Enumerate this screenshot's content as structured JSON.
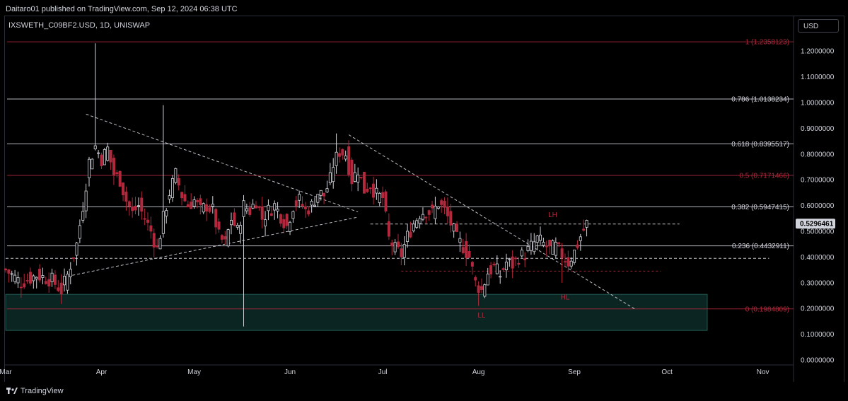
{
  "header": {
    "published": "Daitaro01 published on TradingView.com, Sep 12, 2024 06:38 UTC"
  },
  "symbol_line": "IXSWETH_C09BF2.USD, 1D, UNISWAP",
  "currency_button": "USD",
  "footer": {
    "brand": "TradingView"
  },
  "colors": {
    "background": "#000000",
    "bull": "#d1d4dc",
    "bear": "#b2283c",
    "fib_red": "#b2283c",
    "fib_white": "#d1d4dc",
    "zone": "#0c2a26",
    "price_tag_bg": "#d1d4dc",
    "price_tag_fg": "#000000"
  },
  "icons": {
    "logo": "tradingview-logo-icon"
  },
  "chart_data": {
    "type": "candlestick",
    "title": "IXSWETH_C09BF2.USD, 1D, UNISWAP",
    "ylim": [
      0.0,
      1.27
    ],
    "y_ticks": [
      "1.2000000",
      "1.1000000",
      "1.0000000",
      "0.9000000",
      "0.8000000",
      "0.7000000",
      "0.6000000",
      "0.5000000",
      "0.4000000",
      "0.3000000",
      "0.2000000",
      "0.1000000",
      "0.0000000"
    ],
    "y_tick_values": [
      1.2,
      1.1,
      1.0,
      0.9,
      0.8,
      0.7,
      0.6,
      0.5,
      0.4,
      0.3,
      0.2,
      0.1,
      0.0
    ],
    "x_ticks": [
      "Mar",
      "Apr",
      "May",
      "Jun",
      "Jul",
      "Aug",
      "Sep",
      "Oct",
      "Nov"
    ],
    "x_tick_days": [
      0,
      31,
      61,
      92,
      122,
      153,
      184,
      214,
      245
    ],
    "last_price": "0.5296461",
    "last_value": 0.5296461,
    "fib_levels": [
      {
        "label": "1 (1.2358123)",
        "value": 1.2358123,
        "color": "red"
      },
      {
        "label": "0.786 (1.0138234)",
        "value": 1.0138234,
        "color": "white"
      },
      {
        "label": "0.618 (0.8395517)",
        "value": 0.8395517,
        "color": "white"
      },
      {
        "label": "0.5 (0.7171466)",
        "value": 0.7171466,
        "color": "red"
      },
      {
        "label": "0.382 (0.5947415)",
        "value": 0.5947415,
        "color": "white"
      },
      {
        "label": "0.236 (0.4432911)",
        "value": 0.4432911,
        "color": "white"
      },
      {
        "label": "0 (0.1984809)",
        "value": 0.1984809,
        "color": "red"
      }
    ],
    "annotations": [
      {
        "text": "LH",
        "day": 177,
        "value": 0.555
      },
      {
        "text": "HL",
        "day": 181,
        "value": 0.235
      },
      {
        "text": "LL",
        "day": 154,
        "value": 0.165
      }
    ],
    "support_zone": {
      "y_top": 0.255,
      "y_bottom": 0.115,
      "day_start": 0,
      "day_end": 227
    },
    "trendlines": [
      {
        "style": "dashed",
        "from": [
          26,
          0.955
        ],
        "to": [
          114,
          0.575
        ]
      },
      {
        "style": "dashed",
        "from": [
          20,
          0.325
        ],
        "to": [
          114,
          0.555
        ]
      },
      {
        "style": "dashed",
        "from": [
          111,
          0.875
        ],
        "to": [
          204,
          0.195
        ]
      },
      {
        "style": "dashed",
        "from": [
          0,
          0.395
        ],
        "to": [
          247,
          0.395
        ]
      },
      {
        "style": "dashed",
        "from": [
          118,
          0.528
        ],
        "to": [
          218,
          0.528
        ]
      },
      {
        "style": "dashed_red",
        "from": [
          128,
          0.345
        ],
        "to": [
          212,
          0.345
        ]
      }
    ],
    "anchor_points": [
      [
        0,
        0.35
      ],
      [
        5,
        0.3
      ],
      [
        10,
        0.33
      ],
      [
        15,
        0.31
      ],
      [
        18,
        0.27
      ],
      [
        20,
        0.33
      ],
      [
        23,
        0.45
      ],
      [
        25,
        0.6
      ],
      [
        27,
        0.77
      ],
      [
        29,
        0.83
      ],
      [
        31,
        0.78
      ],
      [
        33,
        0.82
      ],
      [
        35,
        0.72
      ],
      [
        37,
        0.7
      ],
      [
        39,
        0.62
      ],
      [
        41,
        0.57
      ],
      [
        43,
        0.6
      ],
      [
        45,
        0.55
      ],
      [
        47,
        0.5
      ],
      [
        49,
        0.43
      ],
      [
        51,
        0.55
      ],
      [
        53,
        0.65
      ],
      [
        55,
        0.72
      ],
      [
        57,
        0.64
      ],
      [
        59,
        0.6
      ],
      [
        61,
        0.62
      ],
      [
        63,
        0.58
      ],
      [
        65,
        0.6
      ],
      [
        67,
        0.58
      ],
      [
        69,
        0.48
      ],
      [
        71,
        0.45
      ],
      [
        73,
        0.55
      ],
      [
        75,
        0.5
      ],
      [
        77,
        0.6
      ],
      [
        79,
        0.58
      ],
      [
        81,
        0.62
      ],
      [
        83,
        0.55
      ],
      [
        85,
        0.58
      ],
      [
        87,
        0.6
      ],
      [
        89,
        0.56
      ],
      [
        91,
        0.52
      ],
      [
        93,
        0.6
      ],
      [
        95,
        0.62
      ],
      [
        97,
        0.58
      ],
      [
        99,
        0.6
      ],
      [
        101,
        0.65
      ],
      [
        103,
        0.64
      ],
      [
        105,
        0.7
      ],
      [
        106,
        0.76
      ],
      [
        108,
        0.81
      ],
      [
        110,
        0.8
      ],
      [
        112,
        0.7
      ],
      [
        114,
        0.74
      ],
      [
        116,
        0.66
      ],
      [
        118,
        0.68
      ],
      [
        120,
        0.64
      ],
      [
        122,
        0.63
      ],
      [
        124,
        0.47
      ],
      [
        126,
        0.43
      ],
      [
        128,
        0.41
      ],
      [
        130,
        0.48
      ],
      [
        132,
        0.53
      ],
      [
        134,
        0.57
      ],
      [
        136,
        0.58
      ],
      [
        138,
        0.57
      ],
      [
        140,
        0.61
      ],
      [
        142,
        0.58
      ],
      [
        144,
        0.53
      ],
      [
        146,
        0.47
      ],
      [
        148,
        0.44
      ],
      [
        150,
        0.4
      ],
      [
        152,
        0.3
      ],
      [
        154,
        0.27
      ],
      [
        156,
        0.34
      ],
      [
        158,
        0.36
      ],
      [
        160,
        0.33
      ],
      [
        162,
        0.38
      ],
      [
        164,
        0.37
      ],
      [
        166,
        0.4
      ],
      [
        168,
        0.41
      ],
      [
        170,
        0.44
      ],
      [
        172,
        0.47
      ],
      [
        174,
        0.45
      ],
      [
        176,
        0.43
      ],
      [
        178,
        0.44
      ],
      [
        180,
        0.41
      ],
      [
        182,
        0.38
      ],
      [
        184,
        0.42
      ],
      [
        186,
        0.48
      ],
      [
        188,
        0.53
      ]
    ]
  }
}
